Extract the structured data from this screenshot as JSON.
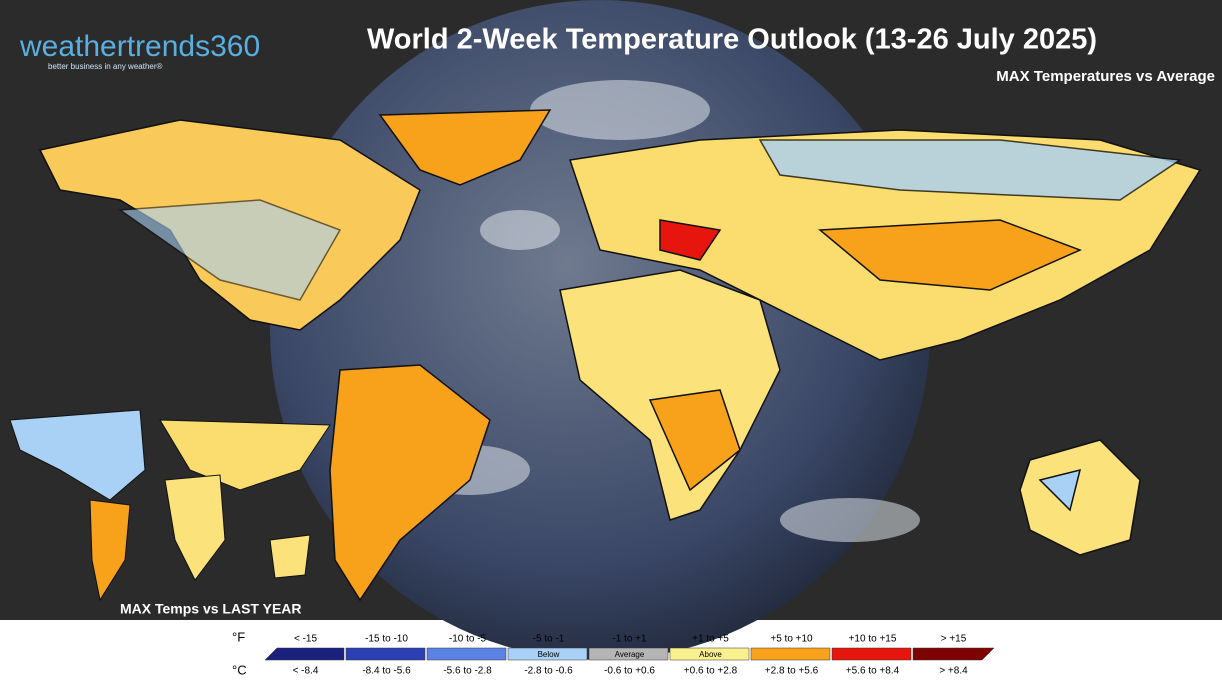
{
  "logo": {
    "name": "weathertrends360",
    "tagline": "better business in any weather®"
  },
  "title": "World 2-Week Temperature Outlook (13-26 July 2025)",
  "subtitle": "MAX Temperatures vs Average",
  "inset_label": "MAX Temps vs LAST YEAR",
  "legend": {
    "f_unit": "°F",
    "c_unit": "°C",
    "bins": [
      {
        "f": "< -15",
        "c": "< -8.4",
        "color": "#1b1f7e"
      },
      {
        "f": "-15 to -10",
        "c": "-8.4 to -5.6",
        "color": "#2d40b3"
      },
      {
        "f": "-10 to -5",
        "c": "-5.6 to -2.8",
        "color": "#5b83e6"
      },
      {
        "f": "-5 to -1",
        "c": "-2.8 to -0.6",
        "color": "#a9d0f5",
        "note": "Below"
      },
      {
        "f": "-1 to +1",
        "c": "-0.6 to +0.6",
        "color": "#b5b5b5",
        "note": "Average"
      },
      {
        "f": "+1 to +5",
        "c": "+0.6 to +2.8",
        "color": "#fbf08e",
        "note": "Above"
      },
      {
        "f": "+5 to +10",
        "c": "+2.8 to +5.6",
        "color": "#f8a21c"
      },
      {
        "f": "+10 to +15",
        "c": "+5.6 to +8.4",
        "color": "#e6160f"
      },
      {
        "f": "> +15",
        "c": "> +8.4",
        "color": "#7d0202"
      }
    ]
  }
}
